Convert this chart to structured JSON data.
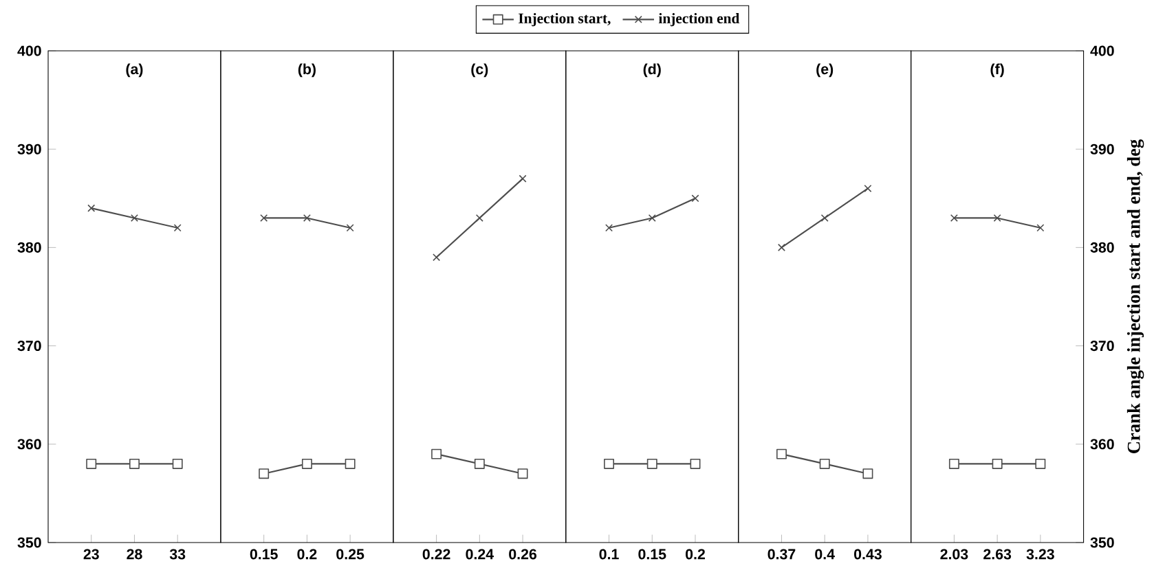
{
  "chart_data": [
    {
      "type": "line",
      "title": "(a)",
      "categories": [
        "23",
        "28",
        "33"
      ],
      "ylim": [
        350,
        400
      ],
      "yticks": [
        350,
        360,
        370,
        380,
        390,
        400
      ],
      "legend": "top",
      "series": [
        {
          "name": "Injection start,",
          "color": "#4d4d4d",
          "marker": "square",
          "values": [
            358,
            358,
            358
          ]
        },
        {
          "name": "injection end",
          "color": "#4d4d4d",
          "marker": "cross",
          "values": [
            384,
            383,
            382
          ]
        }
      ]
    },
    {
      "type": "line",
      "title": "(b)",
      "categories": [
        "0.15",
        "0.2",
        "0.25"
      ],
      "ylim": [
        350,
        400
      ],
      "yticks": [
        350,
        360,
        370,
        380,
        390,
        400
      ],
      "tick_labels": "x",
      "series": [
        {
          "color": "#4d4d4d",
          "marker": "square",
          "values": [
            357,
            358,
            358
          ]
        },
        {
          "color": "#4d4d4d",
          "marker": "cross",
          "values": [
            383,
            383,
            382
          ]
        }
      ]
    },
    {
      "type": "line",
      "title": "(c)",
      "categories": [
        "0.22",
        "0.24",
        "0.26"
      ],
      "ylim": [
        350,
        400
      ],
      "yticks": [
        350,
        360,
        370,
        380,
        390,
        400
      ],
      "tick_labels": "x",
      "series": [
        {
          "color": "#4d4d4d",
          "marker": "square",
          "values": [
            359,
            358,
            357
          ]
        },
        {
          "color": "#4d4d4d",
          "marker": "cross",
          "values": [
            379,
            383,
            387
          ]
        }
      ]
    },
    {
      "type": "line",
      "title": "(d)",
      "categories": [
        "0.1",
        "0.15",
        "0.2"
      ],
      "ylim": [
        350,
        400
      ],
      "yticks": [
        350,
        360,
        370,
        380,
        390,
        400
      ],
      "tick_labels": "x",
      "series": [
        {
          "color": "#4d4d4d",
          "marker": "square",
          "values": [
            358,
            358,
            358
          ]
        },
        {
          "color": "#4d4d4d",
          "marker": "cross",
          "values": [
            382,
            383,
            385
          ]
        }
      ]
    },
    {
      "type": "line",
      "title": "(e)",
      "categories": [
        "0.37",
        "0.4",
        "0.43"
      ],
      "ylim": [
        350,
        400
      ],
      "yticks": [
        350,
        360,
        370,
        380,
        390,
        400
      ],
      "tick_labels": "x",
      "series": [
        {
          "color": "#4d4d4d",
          "marker": "square",
          "values": [
            359,
            358,
            357
          ]
        },
        {
          "color": "#4d4d4d",
          "marker": "cross",
          "values": [
            380,
            383,
            386
          ]
        }
      ]
    },
    {
      "type": "line",
      "title": "(f)",
      "categories": [
        "2.03",
        "2.63",
        "3.23"
      ],
      "y2lim": [
        350,
        400
      ],
      "y2ticks": [
        350,
        360,
        370,
        380,
        390,
        400
      ],
      "y2label": "Crank angle injection start and end, deg",
      "series": [
        {
          "color": "#4d4d4d",
          "marker": "square",
          "axis": "y2",
          "values": [
            358,
            358,
            358
          ]
        },
        {
          "color": "#4d4d4d",
          "marker": "cross",
          "axis": "y2",
          "values": [
            383,
            383,
            382
          ]
        }
      ]
    }
  ]
}
